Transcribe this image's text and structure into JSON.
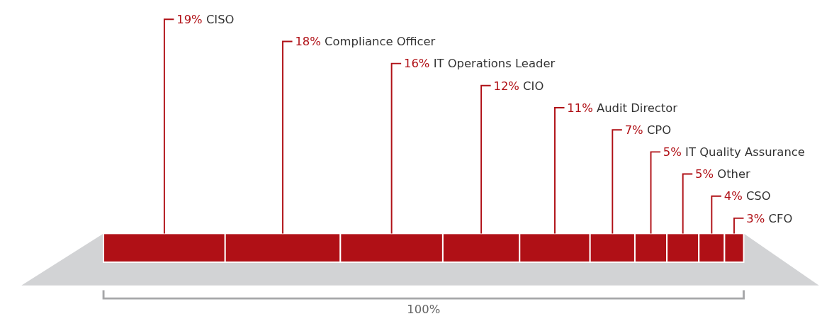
{
  "chart_data": {
    "type": "bar",
    "orientation": "horizontal",
    "stacked": true,
    "categories": [
      null
    ],
    "xlim": [
      0,
      100
    ],
    "tick_labels": false,
    "series": [
      {
        "color": "#b01016",
        "values": [
          19
        ],
        "value_labels": [
          "19% CISO"
        ]
      },
      {
        "color": "#b01016",
        "values": [
          18
        ],
        "value_labels": [
          "18% Compliance Officer"
        ]
      },
      {
        "color": "#b01016",
        "values": [
          16
        ],
        "value_labels": [
          "16% IT Operations Leader"
        ]
      },
      {
        "color": "#b01016",
        "values": [
          12
        ],
        "value_labels": [
          "12% CIO"
        ]
      },
      {
        "color": "#b01016",
        "values": [
          11
        ],
        "value_labels": [
          "11% Audit Director"
        ]
      },
      {
        "color": "#b01016",
        "values": [
          7
        ],
        "value_labels": [
          "7% CPO"
        ]
      },
      {
        "color": "#b01016",
        "values": [
          5
        ],
        "value_labels": [
          "5% IT Quality Assurance"
        ]
      },
      {
        "color": "#b01016",
        "values": [
          5
        ],
        "value_labels": [
          "5% Other"
        ]
      },
      {
        "color": "#b01016",
        "values": [
          4
        ],
        "value_labels": [
          "4% CSO"
        ]
      },
      {
        "color": "#b01016",
        "values": [
          3
        ],
        "value_labels": [
          "3% CFO"
        ]
      }
    ],
    "annotations": [
      "100%"
    ]
  }
}
